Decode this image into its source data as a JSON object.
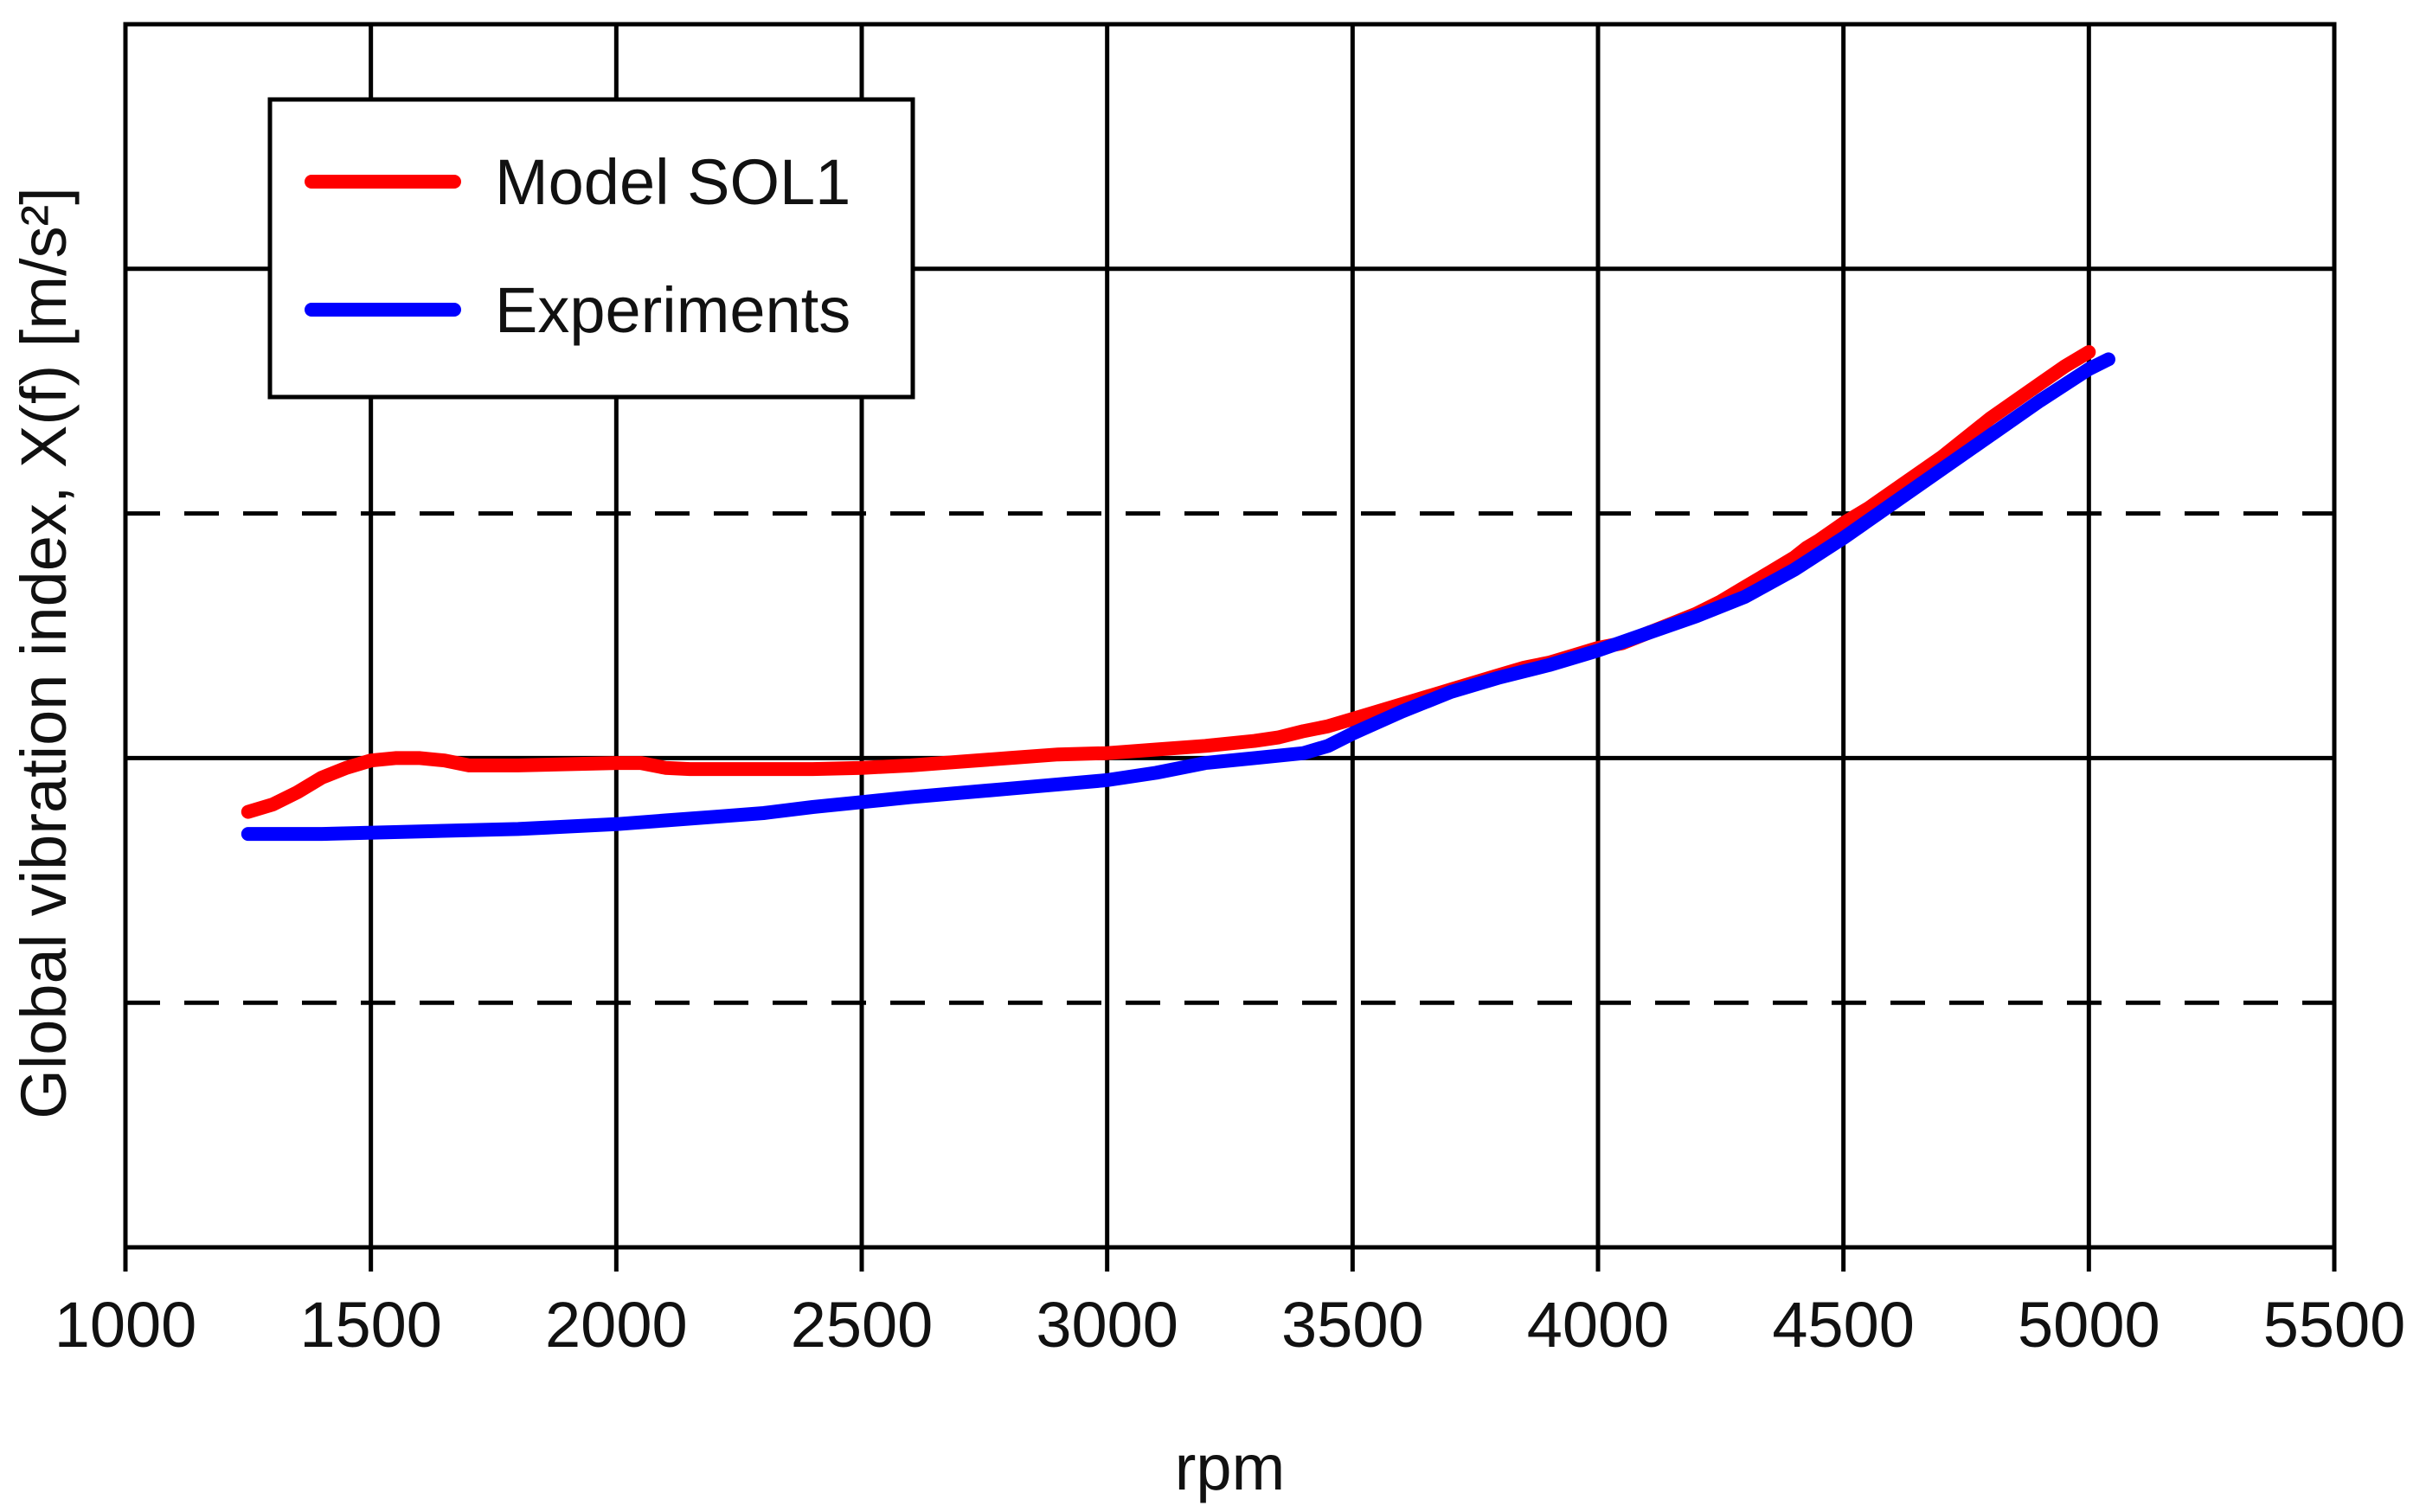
{
  "chart_data": {
    "type": "line",
    "title": "",
    "xlabel": "rpm",
    "ylabel": "Global vibration index, X(f) [m/s²]",
    "xlim": [
      1000,
      5500
    ],
    "ylim": [
      0,
      5
    ],
    "x_ticks": [
      1000,
      1500,
      2000,
      2500,
      3000,
      3500,
      4000,
      4500,
      5000,
      5500
    ],
    "x_tick_labels": [
      "1000",
      "1500",
      "2000",
      "2500",
      "3000",
      "3500",
      "4000",
      "4500",
      "5000",
      "5500"
    ],
    "y_gridlines": [
      {
        "y": 1,
        "style": "dashed"
      },
      {
        "y": 2,
        "style": "solid"
      },
      {
        "y": 3,
        "style": "dashed"
      },
      {
        "y": 4,
        "style": "solid"
      }
    ],
    "y_tick_labels_shown": false,
    "grid": true,
    "legend": {
      "placement": "top-left",
      "entries": [
        "Model SOL1",
        "Experiments"
      ]
    },
    "series": [
      {
        "name": "Model SOL1",
        "color": "#ff0000",
        "x": [
          1250,
          1300,
          1350,
          1400,
          1450,
          1500,
          1550,
          1600,
          1650,
          1700,
          1750,
          1800,
          1900,
          2000,
          2050,
          2100,
          2150,
          2200,
          2300,
          2400,
          2500,
          2600,
          2700,
          2800,
          2900,
          3000,
          3100,
          3200,
          3300,
          3350,
          3400,
          3450,
          3500,
          3600,
          3700,
          3800,
          3850,
          3900,
          3950,
          4000,
          4050,
          4100,
          4150,
          4200,
          4250,
          4300,
          4350,
          4400,
          4425,
          4450,
          4500,
          4550,
          4600,
          4700,
          4800,
          4900,
          4950,
          5000
        ],
        "values": [
          1.78,
          1.81,
          1.86,
          1.92,
          1.96,
          1.99,
          2.0,
          2.0,
          1.99,
          1.97,
          1.97,
          1.97,
          1.975,
          1.98,
          1.98,
          1.96,
          1.955,
          1.955,
          1.955,
          1.955,
          1.96,
          1.97,
          1.985,
          2.0,
          2.015,
          2.02,
          2.035,
          2.05,
          2.07,
          2.085,
          2.11,
          2.13,
          2.16,
          2.22,
          2.28,
          2.34,
          2.37,
          2.39,
          2.42,
          2.45,
          2.47,
          2.51,
          2.55,
          2.59,
          2.64,
          2.7,
          2.76,
          2.82,
          2.86,
          2.89,
          2.96,
          3.02,
          3.09,
          3.23,
          3.39,
          3.53,
          3.6,
          3.66
        ]
      },
      {
        "name": "Experiments",
        "color": "#0000ff",
        "x": [
          1250,
          1400,
          1600,
          1800,
          2000,
          2100,
          2200,
          2300,
          2400,
          2500,
          2600,
          2800,
          3000,
          3100,
          3200,
          3300,
          3400,
          3450,
          3500,
          3600,
          3700,
          3800,
          3900,
          4000,
          4100,
          4200,
          4300,
          4400,
          4500,
          4600,
          4700,
          4800,
          4900,
          5000,
          5040
        ],
        "values": [
          1.69,
          1.69,
          1.7,
          1.71,
          1.73,
          1.745,
          1.76,
          1.775,
          1.8,
          1.82,
          1.84,
          1.875,
          1.91,
          1.94,
          1.98,
          2.0,
          2.02,
          2.05,
          2.1,
          2.19,
          2.27,
          2.33,
          2.38,
          2.44,
          2.51,
          2.58,
          2.66,
          2.77,
          2.9,
          3.04,
          3.18,
          3.32,
          3.46,
          3.59,
          3.63
        ]
      }
    ]
  }
}
